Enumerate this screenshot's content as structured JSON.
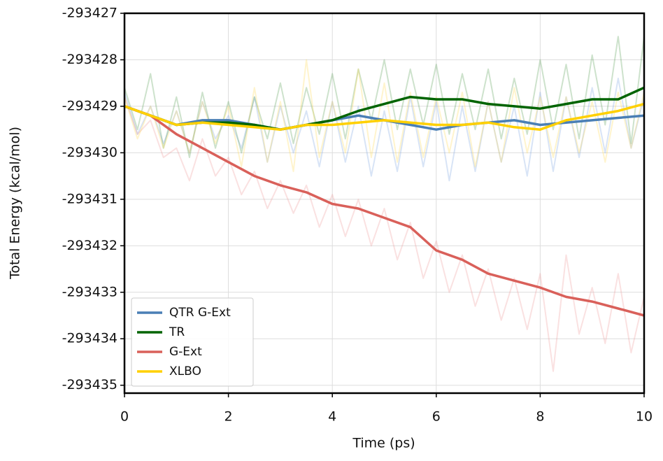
{
  "chart_data": {
    "type": "line",
    "xlabel": "Time (ps)",
    "ylabel": "Total Energy (kcal/mol)",
    "xlim": [
      0,
      10
    ],
    "ylim": [
      -293435.17,
      -293427
    ],
    "xticks": [
      0,
      2,
      4,
      6,
      8,
      10
    ],
    "yticks": [
      -293435,
      -293434,
      -293433,
      -293432,
      -293431,
      -293430,
      -293429,
      -293428,
      -293427
    ],
    "grid": true,
    "legend": "lower left",
    "x": [
      0,
      0.5,
      1,
      1.5,
      2,
      2.5,
      3,
      3.5,
      4,
      4.5,
      5,
      5.5,
      6,
      6.5,
      7,
      7.5,
      8,
      8.5,
      9,
      9.5,
      10
    ],
    "series": [
      {
        "name": "QTR G-Ext",
        "color": "#4a7fb5",
        "values": [
          -293429,
          -293429.2,
          -293429.4,
          -293429.3,
          -293429.3,
          -293429.4,
          -293429.5,
          -293429.4,
          -293429.3,
          -293429.2,
          -293429.3,
          -293429.4,
          -293429.5,
          -293429.4,
          -293429.35,
          -293429.3,
          -293429.4,
          -293429.35,
          -293429.3,
          -293429.25,
          -293429.2
        ]
      },
      {
        "name": "TR",
        "color": "#006400",
        "values": [
          -293429,
          -293429.2,
          -293429.4,
          -293429.35,
          -293429.35,
          -293429.4,
          -293429.5,
          -293429.4,
          -293429.3,
          -293429.1,
          -293428.95,
          -293428.8,
          -293428.85,
          -293428.85,
          -293428.95,
          -293429.0,
          -293429.05,
          -293428.95,
          -293428.85,
          -293428.85,
          -293428.6
        ]
      },
      {
        "name": "G-Ext",
        "color": "#d9605a",
        "values": [
          -293429,
          -293429.2,
          -293429.6,
          -293429.9,
          -293430.2,
          -293430.5,
          -293430.7,
          -293430.85,
          -293431.1,
          -293431.2,
          -293431.4,
          -293431.6,
          -293432.1,
          -293432.3,
          -293432.6,
          -293432.75,
          -293432.9,
          -293433.1,
          -293433.2,
          -293433.35,
          -293433.5
        ]
      },
      {
        "name": "XLBO",
        "color": "#ffd000",
        "values": [
          -293429,
          -293429.2,
          -293429.4,
          -293429.35,
          -293429.4,
          -293429.45,
          -293429.5,
          -293429.4,
          -293429.4,
          -293429.35,
          -293429.3,
          -293429.35,
          -293429.4,
          -293429.4,
          -293429.35,
          -293429.45,
          -293429.5,
          -293429.3,
          -293429.2,
          -293429.1,
          -293428.95
        ]
      }
    ],
    "raw_opacity": 0.3,
    "raw_x": [
      0,
      0.25,
      0.5,
      0.75,
      1,
      1.25,
      1.5,
      1.75,
      2,
      2.25,
      2.5,
      2.75,
      3,
      3.25,
      3.5,
      3.75,
      4,
      4.25,
      4.5,
      4.75,
      5,
      5.25,
      5.5,
      5.75,
      6,
      6.25,
      6.5,
      6.75,
      7,
      7.25,
      7.5,
      7.75,
      8,
      8.25,
      8.5,
      8.75,
      9,
      9.25,
      9.5,
      9.75,
      10
    ],
    "raw_series": [
      {
        "color": "#7fa6e0",
        "values": [
          -293428.7,
          -293429.6,
          -293429.0,
          -293429.8,
          -293429.1,
          -293430.0,
          -293428.9,
          -293429.7,
          -293429.2,
          -293429.9,
          -293428.8,
          -293430.2,
          -293429.0,
          -293430.0,
          -293429.1,
          -293430.3,
          -293428.9,
          -293430.2,
          -293429.0,
          -293430.5,
          -293429.1,
          -293430.4,
          -293428.8,
          -293430.3,
          -293428.9,
          -293430.6,
          -293429.0,
          -293430.4,
          -293428.9,
          -293430.2,
          -293429.0,
          -293430.5,
          -293428.7,
          -293430.4,
          -293428.8,
          -293430.1,
          -293428.6,
          -293430.0,
          -293428.4,
          -293429.9,
          -293428.8
        ]
      },
      {
        "color": "#5a9e55",
        "values": [
          -293428.6,
          -293429.5,
          -293428.3,
          -293429.9,
          -293428.8,
          -293430.1,
          -293428.7,
          -293429.9,
          -293428.9,
          -293430.0,
          -293428.8,
          -293429.7,
          -293428.5,
          -293429.8,
          -293428.6,
          -293429.6,
          -293428.3,
          -293429.7,
          -293428.2,
          -293429.3,
          -293428.0,
          -293429.5,
          -293428.2,
          -293429.4,
          -293428.1,
          -293429.6,
          -293428.3,
          -293429.5,
          -293428.2,
          -293429.7,
          -293428.4,
          -293429.6,
          -293428.0,
          -293429.5,
          -293428.1,
          -293429.7,
          -293427.9,
          -293429.4,
          -293427.5,
          -293429.8,
          -293427.5
        ]
      },
      {
        "color": "#ee9a9a",
        "values": [
          -293428.8,
          -293429.6,
          -293429.3,
          -293430.1,
          -293429.9,
          -293430.6,
          -293429.7,
          -293430.5,
          -293430.1,
          -293430.9,
          -293430.4,
          -293431.2,
          -293430.6,
          -293431.3,
          -293430.7,
          -293431.6,
          -293430.9,
          -293431.8,
          -293431.0,
          -293432.0,
          -293431.2,
          -293432.3,
          -293431.5,
          -293432.7,
          -293431.9,
          -293433.0,
          -293432.2,
          -293433.3,
          -293432.5,
          -293433.6,
          -293432.7,
          -293433.8,
          -293432.6,
          -293434.7,
          -293432.2,
          -293433.9,
          -293432.9,
          -293434.1,
          -293432.6,
          -293434.3,
          -293433.1
        ]
      },
      {
        "color": "#ffd95a",
        "values": [
          -293428.8,
          -293429.7,
          -293429.0,
          -293429.9,
          -293429.1,
          -293430.0,
          -293428.9,
          -293429.8,
          -293429.0,
          -293430.3,
          -293428.6,
          -293430.2,
          -293428.9,
          -293430.4,
          -293428.0,
          -293430.1,
          -293428.9,
          -293430.0,
          -293428.2,
          -293430.1,
          -293428.5,
          -293430.2,
          -293428.7,
          -293430.1,
          -293428.8,
          -293430.0,
          -293428.7,
          -293430.3,
          -293428.9,
          -293430.2,
          -293428.6,
          -293430.0,
          -293428.8,
          -293430.1,
          -293428.8,
          -293430.0,
          -293428.9,
          -293430.2,
          -293428.7,
          -293429.9,
          -293428.7
        ]
      }
    ]
  }
}
